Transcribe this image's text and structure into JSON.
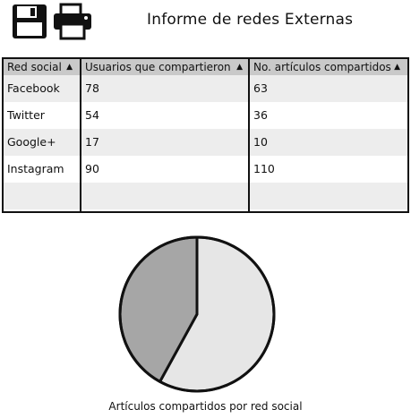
{
  "toolbar": {
    "save_icon": "floppy-disk-icon",
    "print_icon": "printer-icon"
  },
  "title": "Informe de redes Externas",
  "table": {
    "columns": [
      {
        "label": "Red social",
        "sort": "▲"
      },
      {
        "label": "Usuarios que compartieron",
        "sort": "▲"
      },
      {
        "label": "No. artículos compartidos",
        "sort": "▲"
      }
    ],
    "rows": [
      {
        "red": "Facebook",
        "usuarios": "78",
        "articulos": "63"
      },
      {
        "red": "Twitter",
        "usuarios": "54",
        "articulos": "36"
      },
      {
        "red": "Google+",
        "usuarios": "17",
        "articulos": "10"
      },
      {
        "red": "Instagram",
        "usuarios": "90",
        "articulos": "110"
      },
      {
        "red": "",
        "usuarios": "",
        "articulos": ""
      }
    ]
  },
  "chart_data": {
    "type": "pie",
    "title": "Artículos compartidos por red social",
    "values": [
      58,
      42
    ],
    "colors": [
      "#e6e6e6",
      "#a6a6a6"
    ]
  }
}
